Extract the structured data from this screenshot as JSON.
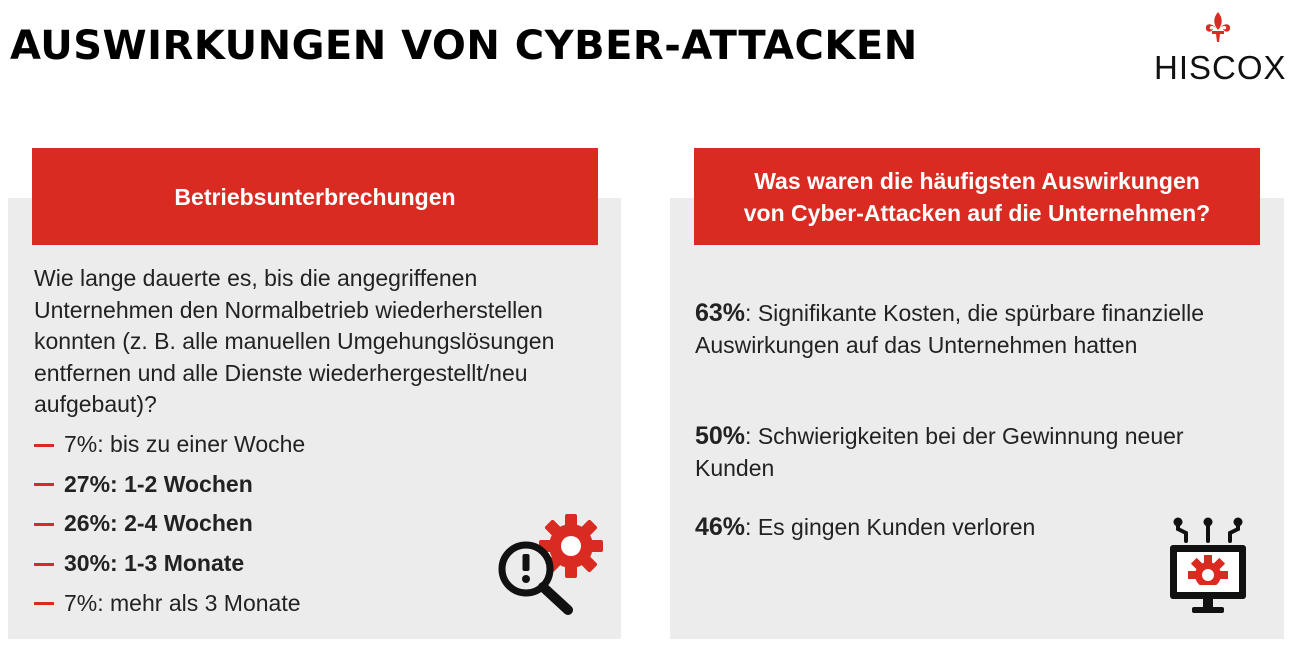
{
  "header": {
    "title": "AUSWIRKUNGEN VON CYBER-ATTACKEN",
    "logo_text": "HISCOX",
    "logo_icon": "fleur-de-lis-icon"
  },
  "colors": {
    "accent": "#d92b22",
    "panel_bg": "#ececec",
    "text": "#222222"
  },
  "left_panel": {
    "banner": "Betriebsunterbrechungen",
    "question": "Wie lange dauerte es, bis die angegriffenen Unternehmen den Normalbetrieb wiederherstellen konnten (z. B. alle manuellen Umgehungslösungen entfernen und alle Dienste wiederhergestellt/neu aufgebaut)?",
    "items": [
      {
        "text": "7%: bis zu einer Woche",
        "bold": false
      },
      {
        "text": "27%: 1-2 Wochen",
        "bold": true
      },
      {
        "text": "26%: 2-4 Wochen",
        "bold": true
      },
      {
        "text": "30%: 1-3 Monate",
        "bold": true
      },
      {
        "text": "7%: mehr als 3 Monate",
        "bold": false
      }
    ],
    "icon": "magnifier-gear-alert-icon"
  },
  "right_panel": {
    "banner_line1": "Was waren die häufigsten Auswirkungen",
    "banner_line2": "von Cyber-Attacken auf die Unternehmen?",
    "items": [
      {
        "percent": "63%",
        "text": ": Signifikante Kosten, die spürbare finanzielle Auswirkungen auf das Unternehmen hatten"
      },
      {
        "percent": "50%",
        "text": ": Schwierigkeiten bei der Gewinnung neuer Kunden"
      },
      {
        "percent": "46%",
        "text": ": Es gingen Kunden verloren"
      }
    ],
    "icon": "monitor-gear-circuit-icon"
  }
}
